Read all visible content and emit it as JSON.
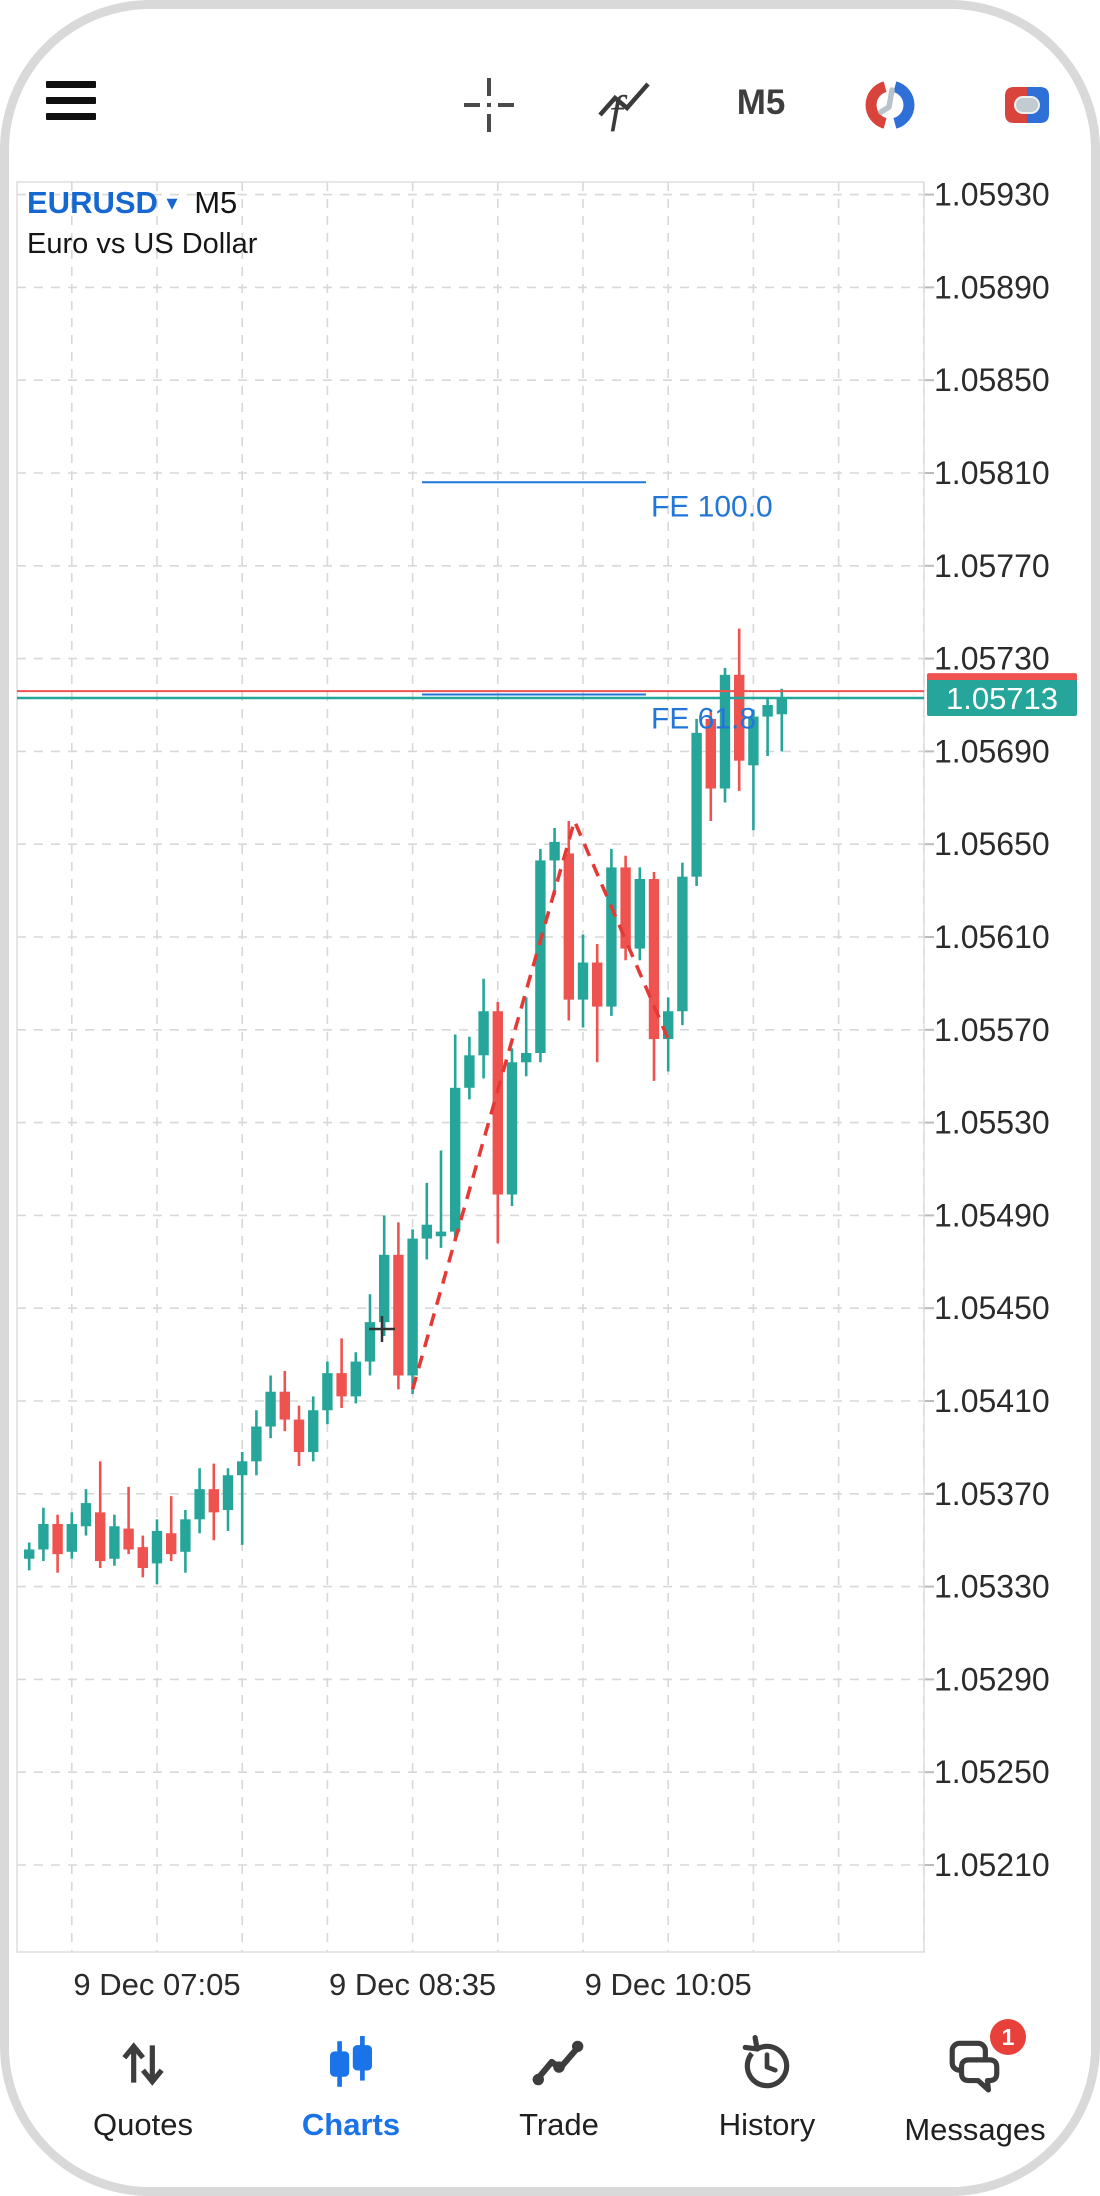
{
  "toolbar": {
    "timeframe": "M5"
  },
  "header": {
    "symbol": "EURUSD",
    "timeframe": "M5",
    "description": "Euro vs US Dollar"
  },
  "chart_data": {
    "type": "candlestick",
    "symbol": "EURUSD",
    "timeframe": "M5",
    "description": "Euro vs US Dollar",
    "start_time": "9 Dec 06:20",
    "interval_minutes": 5,
    "ylim": [
      1.0517,
      1.05955
    ],
    "grid": true,
    "y_ticks": [
      "1.05930",
      "1.05890",
      "1.05850",
      "1.05810",
      "1.05770",
      "1.05730",
      "1.05690",
      "1.05650",
      "1.05610",
      "1.05570",
      "1.05530",
      "1.05490",
      "1.05450",
      "1.05410",
      "1.05370",
      "1.05330",
      "1.05290",
      "1.05250",
      "1.05210"
    ],
    "x_labels": [
      {
        "candle_index": 9,
        "label": "9 Dec 07:05"
      },
      {
        "candle_index": 27,
        "label": "9 Dec 08:35"
      },
      {
        "candle_index": 45,
        "label": "9 Dec 10:05"
      }
    ],
    "ohlc": [
      [
        1.05342,
        1.05349,
        1.05337,
        1.05346
      ],
      [
        1.05346,
        1.05364,
        1.05341,
        1.05357
      ],
      [
        1.05357,
        1.05361,
        1.05336,
        1.05344
      ],
      [
        1.05345,
        1.05362,
        1.05342,
        1.05357
      ],
      [
        1.05356,
        1.05372,
        1.05352,
        1.05366
      ],
      [
        1.05362,
        1.05384,
        1.05338,
        1.05341
      ],
      [
        1.05342,
        1.05361,
        1.05339,
        1.05356
      ],
      [
        1.05355,
        1.05373,
        1.05344,
        1.05346
      ],
      [
        1.05347,
        1.05352,
        1.05334,
        1.05338
      ],
      [
        1.0534,
        1.05359,
        1.05331,
        1.05354
      ],
      [
        1.05353,
        1.05369,
        1.05341,
        1.05344
      ],
      [
        1.05345,
        1.05363,
        1.05336,
        1.05359
      ],
      [
        1.05359,
        1.05381,
        1.05353,
        1.05372
      ],
      [
        1.05372,
        1.05383,
        1.0535,
        1.05362
      ],
      [
        1.05363,
        1.05381,
        1.05354,
        1.05378
      ],
      [
        1.05378,
        1.05388,
        1.05348,
        1.05384
      ],
      [
        1.05384,
        1.05406,
        1.05378,
        1.05399
      ],
      [
        1.05399,
        1.05421,
        1.05394,
        1.05414
      ],
      [
        1.05414,
        1.05423,
        1.05397,
        1.05402
      ],
      [
        1.05402,
        1.05408,
        1.05382,
        1.05388
      ],
      [
        1.05388,
        1.05412,
        1.05384,
        1.05406
      ],
      [
        1.05406,
        1.05427,
        1.054,
        1.05422
      ],
      [
        1.05422,
        1.05437,
        1.05407,
        1.05412
      ],
      [
        1.05412,
        1.05431,
        1.05409,
        1.05427
      ],
      [
        1.05427,
        1.05456,
        1.05421,
        1.05444
      ],
      [
        1.05444,
        1.0549,
        1.05438,
        1.05473
      ],
      [
        1.05473,
        1.05487,
        1.05415,
        1.05421
      ],
      [
        1.05421,
        1.05484,
        1.05413,
        1.0548
      ],
      [
        1.0548,
        1.05504,
        1.05471,
        1.05486
      ],
      [
        1.05481,
        1.05518,
        1.05476,
        1.05483
      ],
      [
        1.05483,
        1.05568,
        1.05479,
        1.05545
      ],
      [
        1.05545,
        1.05567,
        1.0554,
        1.05559
      ],
      [
        1.05559,
        1.05592,
        1.05549,
        1.05578
      ],
      [
        1.05578,
        1.05582,
        1.05478,
        1.05499
      ],
      [
        1.05499,
        1.05562,
        1.05494,
        1.05556
      ],
      [
        1.05556,
        1.05584,
        1.0555,
        1.0556
      ],
      [
        1.0556,
        1.05648,
        1.05556,
        1.05643
      ],
      [
        1.05643,
        1.05657,
        1.05628,
        1.05651
      ],
      [
        1.05646,
        1.0566,
        1.05574,
        1.05583
      ],
      [
        1.05583,
        1.05611,
        1.05571,
        1.05599
      ],
      [
        1.05599,
        1.05607,
        1.05556,
        1.0558
      ],
      [
        1.0558,
        1.05648,
        1.05576,
        1.0564
      ],
      [
        1.0564,
        1.05645,
        1.056,
        1.05605
      ],
      [
        1.05605,
        1.0564,
        1.056,
        1.05635
      ],
      [
        1.05635,
        1.05638,
        1.05548,
        1.05566
      ],
      [
        1.05566,
        1.05584,
        1.05552,
        1.05578
      ],
      [
        1.05578,
        1.05642,
        1.05572,
        1.05636
      ],
      [
        1.05636,
        1.05704,
        1.05632,
        1.05698
      ],
      [
        1.05704,
        1.05708,
        1.0566,
        1.05674
      ],
      [
        1.05674,
        1.05726,
        1.05668,
        1.05723
      ],
      [
        1.05723,
        1.05743,
        1.05673,
        1.05686
      ],
      [
        1.05684,
        1.05708,
        1.05656,
        1.05705
      ],
      [
        1.05705,
        1.05713,
        1.05688,
        1.0571
      ],
      [
        1.05706,
        1.05717,
        1.0569,
        1.05713
      ]
    ],
    "ask": {
      "label": "1.05716",
      "price": 1.05716,
      "color": "#ef5350"
    },
    "bid": {
      "label": "1.05713",
      "price": 1.05713,
      "color": "#26a69a"
    },
    "fibonacci_expansion": {
      "color": "#2176d8",
      "trend_color": "#e53935",
      "levels": [
        {
          "label": "FE 100.0",
          "price": 1.05806
        },
        {
          "label": "FE 61.8",
          "price": 1.057145
        }
      ],
      "trend_points": [
        {
          "candle_index": 27,
          "price": 1.05415
        },
        {
          "candle_index": 38.4,
          "price": 1.0566
        },
        {
          "candle_index": 45,
          "price": 1.05566
        }
      ]
    },
    "colors": {
      "up": "#26a69a",
      "down": "#ef5350",
      "grid": "#d8d8d8",
      "axis_text": "#2b2b2b"
    }
  },
  "bottom_nav": {
    "active_color": "#1a73e8",
    "items": [
      {
        "label": "Quotes",
        "active": false
      },
      {
        "label": "Charts",
        "active": true
      },
      {
        "label": "Trade",
        "active": false
      },
      {
        "label": "History",
        "active": false
      },
      {
        "label": "Messages",
        "active": false,
        "badge": "1"
      }
    ]
  }
}
